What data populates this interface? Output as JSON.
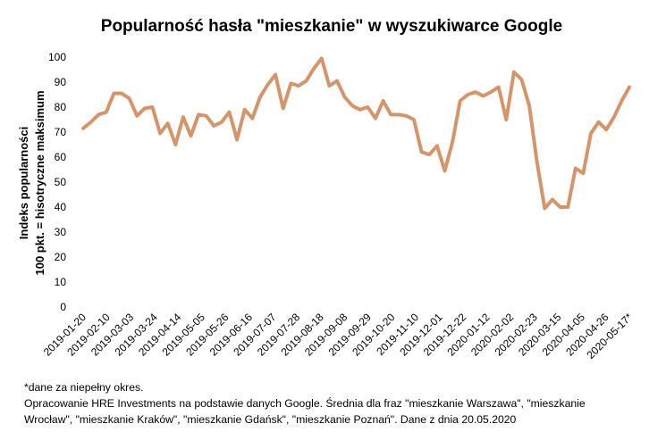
{
  "chart_data": {
    "type": "line",
    "title": "Popularność hasła \"mieszkanie\" w wyszukiwarce Google",
    "ylabel_line1": "Indeks popularności",
    "ylabel_line2": "100 pkt. = hisotryczne maksimum",
    "xlabel": "",
    "ylim": [
      0,
      100
    ],
    "yticks": [
      0,
      10,
      20,
      30,
      40,
      50,
      60,
      70,
      80,
      90,
      100
    ],
    "grid": false,
    "line_color": "#d4956a",
    "xticks": [
      "2019-01-20",
      "2019-02-10",
      "2019-03-03",
      "2019-03-24",
      "2019-04-14",
      "2019-05-05",
      "2019-05-26",
      "2019-06-16",
      "2019-07-07",
      "2019-07-28",
      "2019-08-18",
      "2019-09-08",
      "2019-09-29",
      "2019-10-20",
      "2019-11-10",
      "2019-12-01",
      "2019-12-22",
      "2020-01-12",
      "2020-02-02",
      "2020-02-23",
      "2020-03-15",
      "2020-04-05",
      "2020-04-26",
      "2020-05-17*"
    ],
    "series": [
      {
        "values": [
          71.5,
          74,
          77,
          78,
          85.5,
          85.5,
          83.5,
          76.5,
          79.5,
          80,
          69.5,
          73.5,
          65,
          76,
          68.5,
          77,
          76.5,
          72.5,
          74,
          78,
          67,
          79,
          75.5,
          84,
          89,
          93,
          79.5,
          89.5,
          88.5,
          90.5,
          95.5,
          99.5,
          88.5,
          90.5,
          84,
          80.5,
          79,
          80,
          75.5,
          82.5,
          77,
          77,
          76.5,
          75,
          62,
          61,
          64.5,
          54.5,
          66,
          82.5,
          85,
          86,
          84.5,
          86,
          88,
          75,
          94,
          91,
          80.5,
          58,
          39.5,
          43,
          40,
          40,
          55.5,
          53.5,
          69.5,
          74,
          71,
          76,
          82.5,
          88
        ]
      }
    ]
  },
  "footnotes": {
    "line1": "*dane za niepełny okres.",
    "line2": "Opracowanie HRE Investments na podstawie danych Google. Średnia dla fraz \"mieszkanie Warszawa\", \"mieszkanie",
    "line3": "Wrocław\", \"mieszkanie Kraków\", \"mieszkanie Gdańsk\", \"mieszkanie Poznań\". Dane z dnia 20.05.2020"
  }
}
